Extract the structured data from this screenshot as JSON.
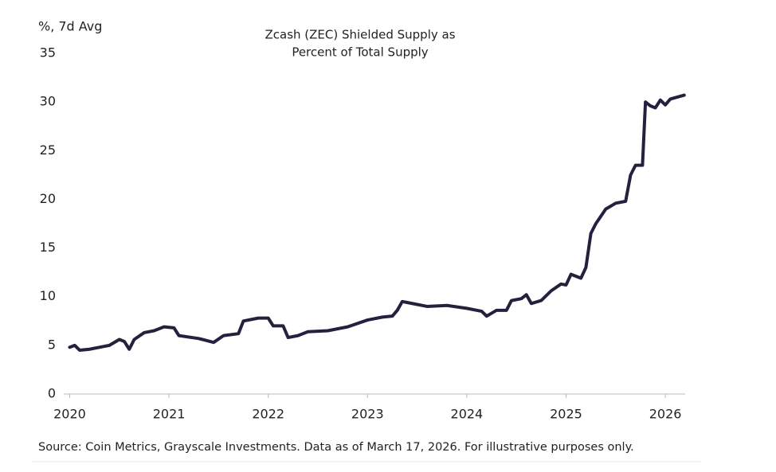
{
  "chart_data": {
    "type": "line",
    "title": [
      "Zcash (ZEC) Shielded Supply as",
      "Percent of Total Supply"
    ],
    "y_label": "%, 7d Avg",
    "note": "Source: Coin Metrics, Grayscale Investments. Data as of March 17, 2026. For illustrative purposes only.",
    "xlim": [
      2019.94,
      2026.2
    ],
    "xticks": [
      2020,
      2021,
      2022,
      2023,
      2024,
      2025,
      2026
    ],
    "ylim": [
      0,
      35
    ],
    "yticks": [
      0,
      5,
      10,
      15,
      20,
      25,
      30,
      35
    ],
    "grid": false,
    "x": [
      2020.0,
      2020.05,
      2020.1,
      2020.2,
      2020.3,
      2020.4,
      2020.5,
      2020.55,
      2020.6,
      2020.65,
      2020.75,
      2020.85,
      2020.95,
      2021.05,
      2021.1,
      2021.3,
      2021.45,
      2021.55,
      2021.7,
      2021.75,
      2021.9,
      2022.0,
      2022.05,
      2022.15,
      2022.2,
      2022.3,
      2022.4,
      2022.6,
      2022.8,
      2023.0,
      2023.15,
      2023.25,
      2023.3,
      2023.35,
      2023.5,
      2023.6,
      2023.8,
      2024.0,
      2024.15,
      2024.2,
      2024.3,
      2024.4,
      2024.45,
      2024.55,
      2024.6,
      2024.65,
      2024.75,
      2024.85,
      2024.95,
      2025.0,
      2025.05,
      2025.15,
      2025.2,
      2025.25,
      2025.3,
      2025.4,
      2025.5,
      2025.6,
      2025.65,
      2025.7,
      2025.77,
      2025.8,
      2025.85,
      2025.9,
      2025.95,
      2026.0,
      2026.05,
      2026.19
    ],
    "series": [
      {
        "color": "#24213f",
        "values": [
          4.8,
          5.0,
          4.5,
          4.6,
          4.8,
          5.0,
          5.6,
          5.4,
          4.6,
          5.6,
          6.3,
          6.5,
          6.9,
          6.8,
          6.0,
          5.7,
          5.3,
          6.0,
          6.2,
          7.5,
          7.8,
          7.8,
          7.0,
          7.0,
          5.8,
          6.0,
          6.4,
          6.5,
          6.9,
          7.6,
          7.9,
          8.0,
          8.6,
          9.5,
          9.2,
          9.0,
          9.1,
          8.8,
          8.5,
          8.0,
          8.6,
          8.6,
          9.6,
          9.8,
          10.2,
          9.3,
          9.6,
          10.6,
          11.3,
          11.2,
          12.3,
          11.9,
          13.0,
          16.5,
          17.5,
          19.0,
          19.6,
          19.8,
          22.5,
          23.5,
          23.5,
          30.0,
          29.6,
          29.4,
          30.2,
          29.7,
          30.3,
          30.7
        ]
      }
    ]
  }
}
